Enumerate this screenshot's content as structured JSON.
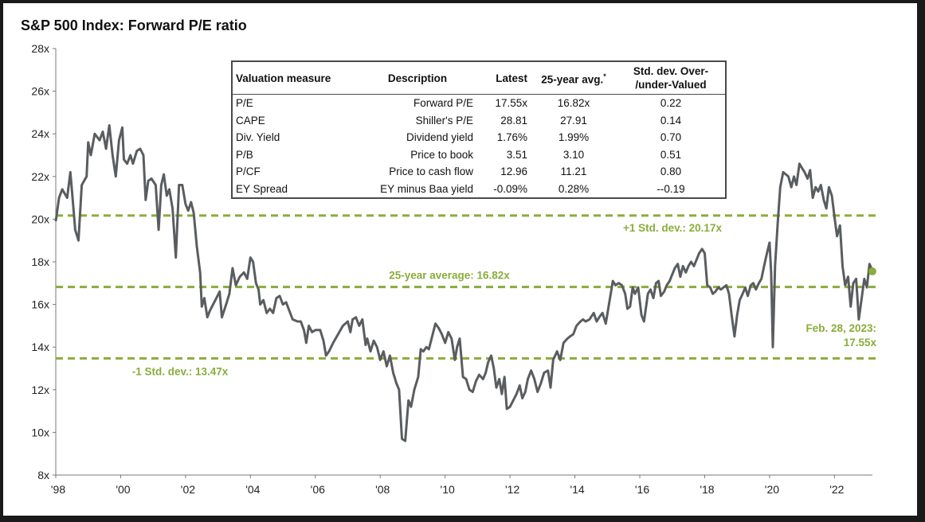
{
  "chart_data": {
    "type": "line",
    "title": "S&P 500 Index: Forward P/E ratio",
    "xlabel": "",
    "ylabel": "",
    "ylim": [
      8,
      28
    ],
    "xlim": [
      1998.0,
      2023.17
    ],
    "yticks": [
      "8x",
      "10x",
      "12x",
      "14x",
      "16x",
      "18x",
      "20x",
      "22x",
      "24x",
      "26x",
      "28x"
    ],
    "xticks": [
      "'98",
      "'00",
      "'02",
      "'04",
      "'06",
      "'08",
      "'10",
      "'12",
      "'14",
      "'16",
      "'18",
      "'20",
      "'22"
    ],
    "series": [
      {
        "color": "#5a5d60",
        "points": [
          [
            1998.0,
            19.9
          ],
          [
            1998.1,
            21.0
          ],
          [
            1998.2,
            21.4
          ],
          [
            1998.35,
            21.0
          ],
          [
            1998.45,
            22.2
          ],
          [
            1998.5,
            21.3
          ],
          [
            1998.6,
            19.5
          ],
          [
            1998.7,
            19.0
          ],
          [
            1998.8,
            21.6
          ],
          [
            1998.95,
            22.0
          ],
          [
            1999.0,
            23.6
          ],
          [
            1999.08,
            23.0
          ],
          [
            1999.2,
            24.0
          ],
          [
            1999.35,
            23.7
          ],
          [
            1999.45,
            24.1
          ],
          [
            1999.55,
            23.3
          ],
          [
            1999.65,
            24.4
          ],
          [
            1999.75,
            23.0
          ],
          [
            1999.85,
            22.0
          ],
          [
            1999.95,
            23.7
          ],
          [
            2000.05,
            24.3
          ],
          [
            2000.1,
            22.8
          ],
          [
            2000.2,
            22.6
          ],
          [
            2000.3,
            23.0
          ],
          [
            2000.38,
            22.6
          ],
          [
            2000.5,
            23.2
          ],
          [
            2000.6,
            23.3
          ],
          [
            2000.7,
            23.0
          ],
          [
            2000.77,
            20.9
          ],
          [
            2000.85,
            21.8
          ],
          [
            2000.95,
            21.9
          ],
          [
            2001.08,
            21.6
          ],
          [
            2001.17,
            19.5
          ],
          [
            2001.25,
            21.6
          ],
          [
            2001.33,
            22.1
          ],
          [
            2001.42,
            21.1
          ],
          [
            2001.5,
            21.4
          ],
          [
            2001.6,
            20.5
          ],
          [
            2001.7,
            18.2
          ],
          [
            2001.8,
            21.6
          ],
          [
            2001.9,
            21.6
          ],
          [
            2002.0,
            20.7
          ],
          [
            2002.08,
            20.4
          ],
          [
            2002.17,
            20.8
          ],
          [
            2002.25,
            20.3
          ],
          [
            2002.35,
            18.7
          ],
          [
            2002.45,
            17.5
          ],
          [
            2002.5,
            15.9
          ],
          [
            2002.58,
            16.3
          ],
          [
            2002.67,
            15.4
          ],
          [
            2002.75,
            15.7
          ],
          [
            2002.85,
            16.0
          ],
          [
            2002.95,
            16.3
          ],
          [
            2003.05,
            16.6
          ],
          [
            2003.12,
            15.4
          ],
          [
            2003.25,
            16.0
          ],
          [
            2003.35,
            16.5
          ],
          [
            2003.45,
            17.7
          ],
          [
            2003.55,
            16.9
          ],
          [
            2003.67,
            17.3
          ],
          [
            2003.8,
            17.5
          ],
          [
            2003.9,
            17.2
          ],
          [
            2004.0,
            18.2
          ],
          [
            2004.08,
            18.0
          ],
          [
            2004.17,
            17.0
          ],
          [
            2004.25,
            16.7
          ],
          [
            2004.3,
            16.0
          ],
          [
            2004.4,
            16.2
          ],
          [
            2004.5,
            15.6
          ],
          [
            2004.6,
            15.8
          ],
          [
            2004.7,
            15.6
          ],
          [
            2004.8,
            16.3
          ],
          [
            2004.9,
            16.4
          ],
          [
            2005.0,
            16.0
          ],
          [
            2005.1,
            16.1
          ],
          [
            2005.2,
            15.7
          ],
          [
            2005.3,
            15.3
          ],
          [
            2005.45,
            15.2
          ],
          [
            2005.55,
            15.2
          ],
          [
            2005.65,
            14.8
          ],
          [
            2005.72,
            14.2
          ],
          [
            2005.8,
            15.0
          ],
          [
            2005.9,
            14.7
          ],
          [
            2006.0,
            14.8
          ],
          [
            2006.15,
            14.8
          ],
          [
            2006.25,
            14.3
          ],
          [
            2006.33,
            13.6
          ],
          [
            2006.42,
            13.8
          ],
          [
            2006.55,
            14.2
          ],
          [
            2006.7,
            14.6
          ],
          [
            2006.85,
            15.0
          ],
          [
            2007.0,
            15.2
          ],
          [
            2007.08,
            14.7
          ],
          [
            2007.15,
            15.3
          ],
          [
            2007.25,
            15.4
          ],
          [
            2007.35,
            15.0
          ],
          [
            2007.45,
            15.3
          ],
          [
            2007.55,
            14.1
          ],
          [
            2007.6,
            14.4
          ],
          [
            2007.7,
            13.8
          ],
          [
            2007.8,
            14.3
          ],
          [
            2007.9,
            14.0
          ],
          [
            2008.0,
            13.4
          ],
          [
            2008.1,
            13.8
          ],
          [
            2008.2,
            13.1
          ],
          [
            2008.3,
            13.6
          ],
          [
            2008.4,
            12.8
          ],
          [
            2008.5,
            12.3
          ],
          [
            2008.58,
            12.0
          ],
          [
            2008.67,
            9.7
          ],
          [
            2008.77,
            9.6
          ],
          [
            2008.87,
            11.5
          ],
          [
            2008.95,
            11.2
          ],
          [
            2009.05,
            12.0
          ],
          [
            2009.17,
            12.6
          ],
          [
            2009.25,
            13.9
          ],
          [
            2009.33,
            13.8
          ],
          [
            2009.42,
            14.0
          ],
          [
            2009.5,
            13.9
          ],
          [
            2009.6,
            14.5
          ],
          [
            2009.7,
            15.1
          ],
          [
            2009.8,
            14.9
          ],
          [
            2009.9,
            14.6
          ],
          [
            2010.0,
            14.2
          ],
          [
            2010.1,
            14.7
          ],
          [
            2010.2,
            14.4
          ],
          [
            2010.3,
            13.4
          ],
          [
            2010.37,
            14.0
          ],
          [
            2010.45,
            14.4
          ],
          [
            2010.55,
            12.6
          ],
          [
            2010.65,
            12.5
          ],
          [
            2010.75,
            12.0
          ],
          [
            2010.85,
            11.9
          ],
          [
            2010.95,
            12.4
          ],
          [
            2011.05,
            12.7
          ],
          [
            2011.17,
            12.5
          ],
          [
            2011.25,
            12.8
          ],
          [
            2011.33,
            13.3
          ],
          [
            2011.42,
            13.6
          ],
          [
            2011.5,
            13.0
          ],
          [
            2011.58,
            12.1
          ],
          [
            2011.67,
            12.5
          ],
          [
            2011.75,
            11.8
          ],
          [
            2011.83,
            12.6
          ],
          [
            2011.9,
            11.1
          ],
          [
            2012.0,
            11.2
          ],
          [
            2012.1,
            11.5
          ],
          [
            2012.2,
            11.8
          ],
          [
            2012.3,
            12.2
          ],
          [
            2012.38,
            11.6
          ],
          [
            2012.47,
            11.9
          ],
          [
            2012.55,
            12.5
          ],
          [
            2012.65,
            12.9
          ],
          [
            2012.75,
            12.5
          ],
          [
            2012.85,
            11.9
          ],
          [
            2012.95,
            12.3
          ],
          [
            2013.05,
            12.8
          ],
          [
            2013.17,
            12.9
          ],
          [
            2013.25,
            12.1
          ],
          [
            2013.33,
            13.4
          ],
          [
            2013.45,
            13.8
          ],
          [
            2013.55,
            13.4
          ],
          [
            2013.65,
            14.2
          ],
          [
            2013.77,
            14.4
          ],
          [
            2013.85,
            14.5
          ],
          [
            2013.95,
            14.6
          ],
          [
            2014.05,
            15.0
          ],
          [
            2014.17,
            15.2
          ],
          [
            2014.25,
            15.3
          ],
          [
            2014.33,
            15.2
          ],
          [
            2014.45,
            15.3
          ],
          [
            2014.58,
            15.6
          ],
          [
            2014.67,
            15.2
          ],
          [
            2014.75,
            15.4
          ],
          [
            2014.85,
            15.6
          ],
          [
            2014.95,
            15.1
          ],
          [
            2015.05,
            16.0
          ],
          [
            2015.17,
            17.1
          ],
          [
            2015.25,
            16.9
          ],
          [
            2015.35,
            17.0
          ],
          [
            2015.45,
            16.9
          ],
          [
            2015.55,
            16.5
          ],
          [
            2015.62,
            15.8
          ],
          [
            2015.7,
            15.9
          ],
          [
            2015.78,
            16.8
          ],
          [
            2015.85,
            16.5
          ],
          [
            2015.95,
            16.8
          ],
          [
            2016.05,
            15.5
          ],
          [
            2016.13,
            15.2
          ],
          [
            2016.25,
            16.5
          ],
          [
            2016.33,
            16.7
          ],
          [
            2016.42,
            16.3
          ],
          [
            2016.5,
            17.0
          ],
          [
            2016.58,
            17.1
          ],
          [
            2016.65,
            16.4
          ],
          [
            2016.75,
            16.6
          ],
          [
            2016.83,
            16.9
          ],
          [
            2016.92,
            17.1
          ],
          [
            2017.0,
            17.4
          ],
          [
            2017.08,
            17.7
          ],
          [
            2017.17,
            17.9
          ],
          [
            2017.25,
            17.3
          ],
          [
            2017.33,
            17.8
          ],
          [
            2017.42,
            17.5
          ],
          [
            2017.5,
            17.8
          ],
          [
            2017.58,
            18.0
          ],
          [
            2017.67,
            17.8
          ],
          [
            2017.75,
            18.1
          ],
          [
            2017.83,
            18.4
          ],
          [
            2017.92,
            18.6
          ],
          [
            2018.0,
            18.4
          ],
          [
            2018.08,
            16.9
          ],
          [
            2018.17,
            16.8
          ],
          [
            2018.25,
            16.5
          ],
          [
            2018.33,
            16.6
          ],
          [
            2018.42,
            16.8
          ],
          [
            2018.5,
            16.7
          ],
          [
            2018.58,
            16.8
          ],
          [
            2018.67,
            16.9
          ],
          [
            2018.75,
            16.5
          ],
          [
            2018.83,
            15.5
          ],
          [
            2018.92,
            14.5
          ],
          [
            2019.0,
            15.5
          ],
          [
            2019.08,
            16.2
          ],
          [
            2019.17,
            16.5
          ],
          [
            2019.25,
            16.8
          ],
          [
            2019.33,
            16.4
          ],
          [
            2019.42,
            16.9
          ],
          [
            2019.5,
            17.0
          ],
          [
            2019.58,
            16.7
          ],
          [
            2019.67,
            17.0
          ],
          [
            2019.75,
            17.2
          ],
          [
            2019.83,
            17.8
          ],
          [
            2019.92,
            18.4
          ],
          [
            2020.0,
            18.9
          ],
          [
            2020.05,
            17.5
          ],
          [
            2020.1,
            14.0
          ],
          [
            2020.17,
            17.8
          ],
          [
            2020.25,
            19.8
          ],
          [
            2020.33,
            21.5
          ],
          [
            2020.42,
            22.2
          ],
          [
            2020.5,
            22.1
          ],
          [
            2020.58,
            22.0
          ],
          [
            2020.67,
            21.5
          ],
          [
            2020.75,
            22.0
          ],
          [
            2020.83,
            21.6
          ],
          [
            2020.92,
            22.6
          ],
          [
            2021.0,
            22.4
          ],
          [
            2021.08,
            22.2
          ],
          [
            2021.17,
            21.9
          ],
          [
            2021.25,
            22.3
          ],
          [
            2021.33,
            21.0
          ],
          [
            2021.42,
            21.5
          ],
          [
            2021.5,
            21.3
          ],
          [
            2021.58,
            21.6
          ],
          [
            2021.67,
            20.9
          ],
          [
            2021.75,
            20.5
          ],
          [
            2021.83,
            21.5
          ],
          [
            2021.92,
            21.1
          ],
          [
            2022.0,
            20.1
          ],
          [
            2022.08,
            19.2
          ],
          [
            2022.17,
            19.7
          ],
          [
            2022.25,
            17.8
          ],
          [
            2022.33,
            16.9
          ],
          [
            2022.42,
            17.3
          ],
          [
            2022.5,
            15.9
          ],
          [
            2022.58,
            17.0
          ],
          [
            2022.67,
            17.2
          ],
          [
            2022.75,
            15.3
          ],
          [
            2022.83,
            16.2
          ],
          [
            2022.92,
            17.2
          ],
          [
            2023.0,
            16.8
          ],
          [
            2023.08,
            17.9
          ],
          [
            2023.17,
            17.6
          ]
        ]
      }
    ],
    "reference_lines": [
      {
        "y": 20.17,
        "label": "+1 Std. dev.: 20.17x",
        "color": "#8aac3b"
      },
      {
        "y": 16.82,
        "label": "25-year average: 16.82x",
        "color": "#8aac3b"
      },
      {
        "y": 13.47,
        "label": "-1 Std. dev.: 13.47x",
        "color": "#8aac3b"
      }
    ],
    "latest_point": {
      "x": 2023.17,
      "y": 17.55,
      "label_line1": "Feb. 28, 2023:",
      "label_line2": "17.55x",
      "color": "#8aac3b"
    },
    "grid": false,
    "legend": "none",
    "table": {
      "headers": {
        "measure": "Valuation measure",
        "description": "Description",
        "latest": "Latest",
        "avg": "25-year avg.",
        "avg_mark": "*",
        "std_line1": "Std. dev. Over-",
        "std_line2": "/under-Valued"
      },
      "rows": [
        {
          "measure": "P/E",
          "description": "Forward P/E",
          "latest": "17.55x",
          "avg": "16.82x",
          "std": "0.22"
        },
        {
          "measure": "CAPE",
          "description": "Shiller's P/E",
          "latest": "28.81",
          "avg": "27.91",
          "std": "0.14"
        },
        {
          "measure": "Div. Yield",
          "description": "Dividend yield",
          "latest": "1.76%",
          "avg": "1.99%",
          "std": "0.70"
        },
        {
          "measure": "P/B",
          "description": "Price to book",
          "latest": "3.51",
          "avg": "3.10",
          "std": "0.51"
        },
        {
          "measure": "P/CF",
          "description": "Price to cash flow",
          "latest": "12.96",
          "avg": "11.21",
          "std": "0.80"
        },
        {
          "measure": "EY Spread",
          "description": "EY minus Baa yield",
          "latest": "-0.09%",
          "avg": "0.28%",
          "std": "--0.19"
        }
      ]
    }
  }
}
